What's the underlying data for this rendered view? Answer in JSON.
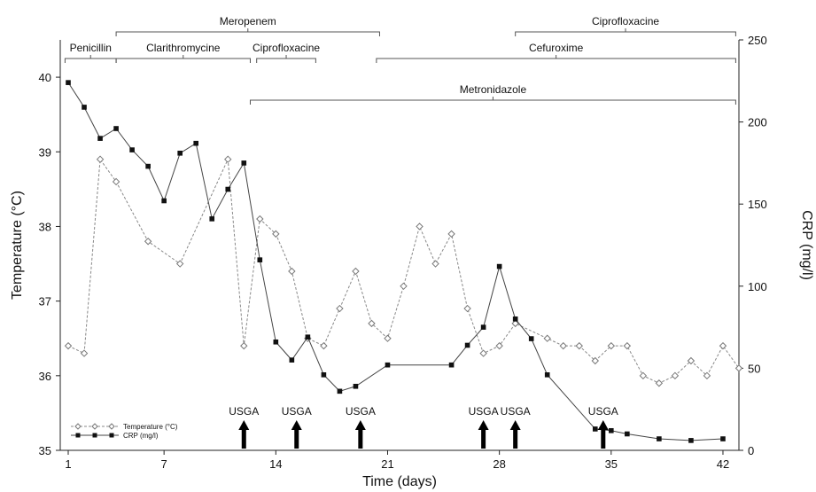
{
  "chart_data": {
    "type": "line",
    "xlabel": "Time (days)",
    "ylabel": "Temperature (°C)",
    "y2label": "CRP (mg/l)",
    "xlim": [
      0.5,
      43
    ],
    "ylim": [
      35,
      40.5
    ],
    "y2lim": [
      0,
      250
    ],
    "xticks": [
      1,
      7,
      14,
      21,
      28,
      35,
      42
    ],
    "yticks": [
      35,
      36,
      37,
      38,
      39,
      40
    ],
    "y2ticks": [
      0,
      50,
      100,
      150,
      200,
      250
    ],
    "grid": false,
    "legend_position": "bottom-left",
    "series": [
      {
        "name": "Temperature (°C)",
        "axis": "left",
        "style": "dashed, open diamond markers",
        "color": "#888888",
        "points": [
          [
            1,
            36.4
          ],
          [
            2,
            36.3
          ],
          [
            3,
            38.9
          ],
          [
            4,
            38.6
          ],
          [
            6,
            37.8
          ],
          [
            8,
            37.5
          ],
          [
            11,
            38.9
          ],
          [
            12,
            36.4
          ],
          [
            13,
            38.1
          ],
          [
            14,
            37.9
          ],
          [
            15,
            37.4
          ],
          [
            16,
            36.5
          ],
          [
            17,
            36.4
          ],
          [
            18,
            36.9
          ],
          [
            19,
            37.4
          ],
          [
            20,
            36.7
          ],
          [
            21,
            36.5
          ],
          [
            22,
            37.2
          ],
          [
            23,
            38.0
          ],
          [
            24,
            37.5
          ],
          [
            25,
            37.9
          ],
          [
            26,
            36.9
          ],
          [
            27,
            36.3
          ],
          [
            28,
            36.4
          ],
          [
            29,
            36.7
          ],
          [
            31,
            36.5
          ],
          [
            32,
            36.4
          ],
          [
            33,
            36.4
          ],
          [
            34,
            36.2
          ],
          [
            35,
            36.4
          ],
          [
            36,
            36.4
          ],
          [
            37,
            36.0
          ],
          [
            38,
            35.9
          ],
          [
            39,
            36.0
          ],
          [
            40,
            36.2
          ],
          [
            41,
            36.0
          ],
          [
            42,
            36.4
          ],
          [
            43,
            36.1
          ]
        ]
      },
      {
        "name": "CRP (mg/l)",
        "axis": "right",
        "style": "solid, filled square markers",
        "color": "#111111",
        "points": [
          [
            1,
            224
          ],
          [
            2,
            209
          ],
          [
            3,
            190
          ],
          [
            4,
            196
          ],
          [
            5,
            183
          ],
          [
            6,
            173
          ],
          [
            7,
            152
          ],
          [
            8,
            181
          ],
          [
            9,
            187
          ],
          [
            10,
            141
          ],
          [
            11,
            159
          ],
          [
            12,
            175
          ],
          [
            13,
            116
          ],
          [
            14,
            66
          ],
          [
            15,
            55
          ],
          [
            16,
            69
          ],
          [
            17,
            46
          ],
          [
            18,
            36
          ],
          [
            19,
            39
          ],
          [
            21,
            52
          ],
          [
            25,
            52
          ],
          [
            26,
            64
          ],
          [
            27,
            75
          ],
          [
            28,
            112
          ],
          [
            29,
            80
          ],
          [
            30,
            68
          ],
          [
            31,
            46
          ],
          [
            34,
            13
          ],
          [
            35,
            12
          ],
          [
            36,
            10
          ],
          [
            38,
            7
          ],
          [
            40,
            6
          ],
          [
            42,
            7
          ]
        ]
      }
    ],
    "annotations": {
      "arrows": {
        "label": "USGA",
        "days": [
          12,
          15.3,
          19.3,
          27,
          29,
          34.5
        ]
      },
      "treatments": [
        {
          "label": "Meropenem",
          "start": 4,
          "end": 20.5,
          "row": 1
        },
        {
          "label": "Ciprofloxacine",
          "start": 29,
          "end": 42.8,
          "row": 1
        },
        {
          "label": "Penicillin",
          "start": 0.8,
          "end": 4,
          "row": 2
        },
        {
          "label": "Clarithromycine",
          "start": 4,
          "end": 12.4,
          "row": 2
        },
        {
          "label": "Ciprofloxacine",
          "start": 12.8,
          "end": 16.5,
          "row": 2
        },
        {
          "label": "Cefuroxime",
          "start": 20.3,
          "end": 42.8,
          "row": 2
        },
        {
          "label": "Metronidazole",
          "start": 12.4,
          "end": 42.8,
          "row": 3
        }
      ]
    }
  }
}
